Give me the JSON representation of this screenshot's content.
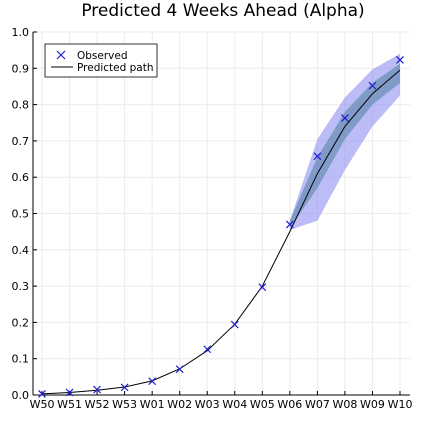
{
  "chart_data": {
    "type": "line",
    "title": "Predicted 4 Weeks Ahead (Alpha)",
    "xlabel": "",
    "ylabel": "",
    "categories": [
      "W50",
      "W51",
      "W52",
      "W53",
      "W01",
      "W02",
      "W03",
      "W04",
      "W05",
      "W06",
      "W07",
      "W08",
      "W09",
      "W10"
    ],
    "ylim": [
      0,
      1
    ],
    "yticks": [
      0.0,
      0.1,
      0.2,
      0.3,
      0.4,
      0.5,
      0.6,
      0.7,
      0.8,
      0.9,
      1.0
    ],
    "ytick_labels": [
      "0.0",
      "0.1",
      "0.2",
      "0.3",
      "0.4",
      "0.5",
      "0.6",
      "0.7",
      "0.8",
      "0.9",
      "1.0"
    ],
    "grid": true,
    "legend_position": "top-left",
    "series": [
      {
        "name": "Observed",
        "kind": "scatter",
        "marker": "x",
        "color": "#1f1fcf",
        "values": [
          0.003,
          0.007,
          0.015,
          0.021,
          0.038,
          0.071,
          0.126,
          0.194,
          0.297,
          0.47,
          0.658,
          0.763,
          0.852,
          0.923
        ]
      },
      {
        "name": "Predicted path",
        "kind": "line",
        "color": "#000000",
        "values": [
          0.003,
          0.007,
          0.013,
          0.022,
          0.039,
          0.072,
          0.122,
          0.195,
          0.3,
          0.45,
          0.61,
          0.74,
          0.83,
          0.895
        ]
      }
    ],
    "bands": [
      {
        "label": "outer",
        "color": "#8f8ff2",
        "opacity": 0.6,
        "x_start_index": 9,
        "lower": [
          0.455,
          0.48,
          0.62,
          0.74,
          0.825
        ],
        "upper": [
          0.48,
          0.705,
          0.82,
          0.897,
          0.94
        ]
      },
      {
        "label": "inner",
        "color": "#4f7fa0",
        "opacity": 0.55,
        "x_start_index": 9,
        "lower": [
          0.46,
          0.57,
          0.705,
          0.8,
          0.86
        ],
        "upper": [
          0.48,
          0.655,
          0.78,
          0.86,
          0.913
        ]
      }
    ]
  }
}
